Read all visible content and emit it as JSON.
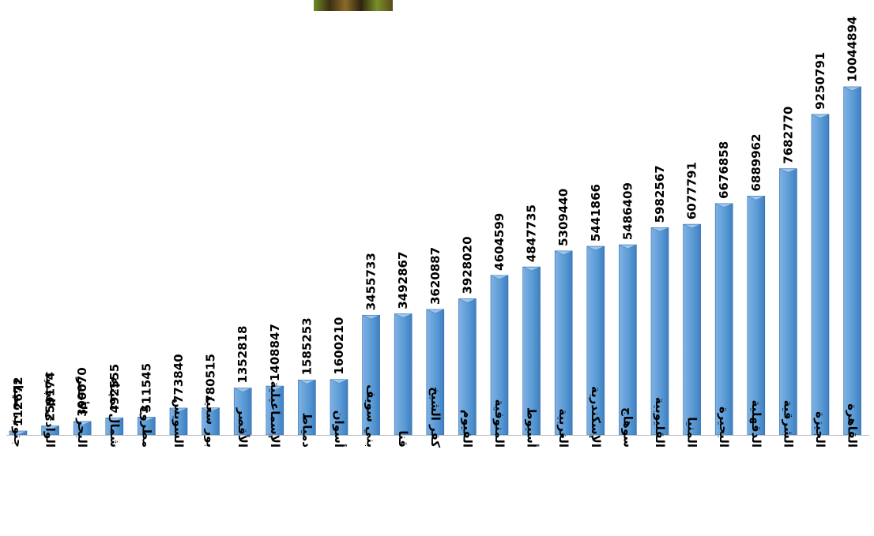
{
  "chart_data": {
    "type": "bar",
    "orientation": "vertical",
    "bar_style": "3d-pyramid-top",
    "legend": "none",
    "grid": false,
    "ylim": [
      0,
      10500000
    ],
    "bar_color": "#5b9bd5",
    "bar_edge_color": "#2f6fae",
    "categories": [
      "جنوب سيناء",
      "الوادى الجديد",
      "البحر الأحمر",
      "شمال سيناء",
      "مطروح",
      "السويس",
      "بور سعيد",
      "الأقصر",
      "الإسماعيلية",
      "دمياط",
      "أسوان",
      "بني سويف",
      "قنا",
      "كفر الشيخ",
      "الفيوم",
      "المنوفية",
      "أسيوط",
      "الغربية",
      "الإسكندرية",
      "سوهاج",
      "القليوبية",
      "المنيا",
      "البحيرة",
      "الدقهلية",
      "الشرقية",
      "الجيزة",
      "القاهرة"
    ],
    "values": [
      112672,
      259174,
      390070,
      492555,
      511545,
      773840,
      780515,
      1352818,
      1408847,
      1585253,
      1600210,
      3455733,
      3492867,
      3620887,
      3928020,
      4604599,
      4847735,
      5309440,
      5441866,
      5486409,
      5982567,
      6077791,
      6676858,
      6889962,
      7682770,
      9250791,
      10044894
    ],
    "value_labels": [
      "112672",
      "259174",
      "390070",
      "492555",
      "511545",
      "773840",
      "780515",
      "1352818",
      "1408847",
      "1585253",
      "1600210",
      "3455733",
      "3492867",
      "3620887",
      "3928020",
      "4604599",
      "4847735",
      "5309440",
      "5441866",
      "5486409",
      "5982567",
      "6077791",
      "6676858",
      "6889962",
      "7682770",
      "9250791",
      "10044894"
    ]
  }
}
